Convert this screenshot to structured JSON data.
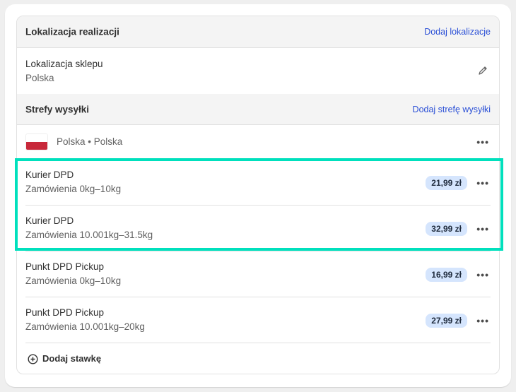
{
  "fulfillment": {
    "title": "Lokalizacja realizacji",
    "add_link": "Dodaj lokalizacje"
  },
  "store": {
    "title": "Lokalizacja sklepu",
    "country": "Polska",
    "edit_icon": "pencil-icon"
  },
  "zones": {
    "title": "Strefy wysyłki",
    "add_link": "Dodaj strefę wysyłki",
    "zone_label": "Polska • Polska",
    "flag": "poland-flag"
  },
  "rates": [
    {
      "name": "Kurier DPD",
      "condition": "Zamówienia 0kg–10kg",
      "price": "21,99 zł"
    },
    {
      "name": "Kurier DPD",
      "condition": "Zamówienia 10.001kg–31.5kg",
      "price": "32,99 zł"
    },
    {
      "name": "Punkt DPD Pickup",
      "condition": "Zamówienia 0kg–10kg",
      "price": "16,99 zł"
    },
    {
      "name": "Punkt DPD Pickup",
      "condition": "Zamówienia 10.001kg–20kg",
      "price": "27,99 zł"
    }
  ],
  "add_rate": "Dodaj stawkę",
  "colors": {
    "highlight": "#00e0bd",
    "link": "#2a4fd6",
    "badge": "#d5e5fd"
  }
}
